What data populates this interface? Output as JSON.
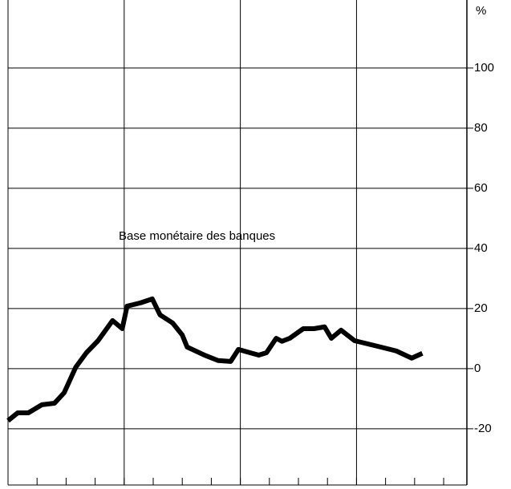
{
  "chart_data": {
    "type": "line",
    "annotation": "Base monétaire des banques",
    "y_unit": "%",
    "xlim": [
      0,
      47.4
    ],
    "xticks": [
      3,
      6,
      9,
      12,
      15,
      18,
      21,
      24,
      27,
      30,
      33,
      36,
      39,
      42,
      45
    ],
    "xgrid": [
      12,
      24,
      36
    ],
    "ylim": [
      -38.7,
      120.5
    ],
    "yticks": [
      -20,
      0,
      20,
      40,
      60,
      80,
      100
    ],
    "grid": true,
    "series": [
      {
        "color": "#000000",
        "x": [
          0,
          1,
          2.1,
          3.5,
          4.8,
          5.8,
          7,
          8.1,
          9.3,
          10.8,
          11.8,
          12.3,
          13.7,
          14.9,
          15.7,
          17,
          18,
          18.5,
          20.3,
          21.7,
          23,
          23.8,
          25,
          25.9,
          26.7,
          27.7,
          28.3,
          29.1,
          30.5,
          31.6,
          32.7,
          33.4,
          34.4,
          35.8,
          38.1,
          40.1,
          41.7,
          42.8
        ],
        "values": [
          -17.3,
          -14.7,
          -14.7,
          -12,
          -11.5,
          -8,
          0.5,
          5.3,
          9.3,
          16,
          13.3,
          20.8,
          21.9,
          23.2,
          17.9,
          15.2,
          11.2,
          7.2,
          4.5,
          2.7,
          2.4,
          6.4,
          5.3,
          4.5,
          5.3,
          10.1,
          9.1,
          10.1,
          13.3,
          13.3,
          13.9,
          10.1,
          12.8,
          9.3,
          7.5,
          5.9,
          3.5,
          5.1
        ]
      }
    ]
  }
}
